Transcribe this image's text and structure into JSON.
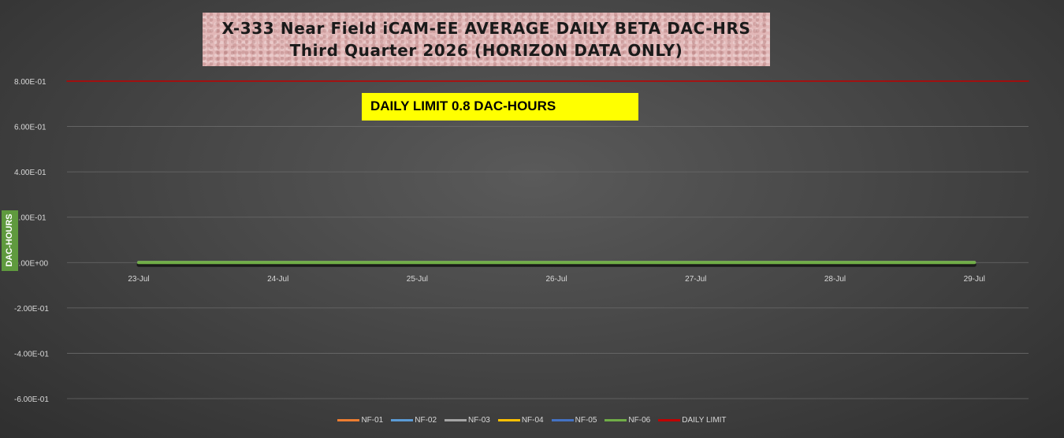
{
  "chart_data": {
    "type": "line",
    "title": "X-333 Near Field iCAM-EE AVERAGE DAILY BETA DAC-HRS",
    "subtitle": "Third Quarter 2026 (HORIZON DATA ONLY)",
    "ylabel": "DAC-HOURS",
    "xlabel": "",
    "annotation": "DAILY LIMIT 0.8 DAC-HOURS",
    "ylim": [
      -0.6,
      0.8
    ],
    "yticks": [
      {
        "value": 0.8,
        "label": "8.00E-01"
      },
      {
        "value": 0.6,
        "label": "6.00E-01"
      },
      {
        "value": 0.4,
        "label": "4.00E-01"
      },
      {
        "value": 0.2,
        "label": "2.00E-01"
      },
      {
        "value": 0.0,
        "label": "0.00E+00"
      },
      {
        "value": -0.2,
        "label": "-2.00E-01"
      },
      {
        "value": -0.4,
        "label": "-4.00E-01"
      },
      {
        "value": -0.6,
        "label": "-6.00E-01"
      }
    ],
    "categories": [
      "23-Jul",
      "24-Jul",
      "25-Jul",
      "26-Jul",
      "27-Jul",
      "28-Jul",
      "29-Jul"
    ],
    "grid": true,
    "legend_position": "bottom",
    "series": [
      {
        "name": "NF-01",
        "color": "#ed7d31",
        "values": [
          0,
          0,
          0,
          0,
          0,
          0,
          0
        ]
      },
      {
        "name": "NF-02",
        "color": "#5b9bd5",
        "values": [
          0,
          0,
          0,
          0,
          0,
          0,
          0
        ]
      },
      {
        "name": "NF-03",
        "color": "#a5a5a5",
        "values": [
          0,
          0,
          0,
          0,
          0,
          0,
          0
        ]
      },
      {
        "name": "NF-04",
        "color": "#ffc000",
        "values": [
          0,
          0,
          0,
          0,
          0,
          0,
          0
        ]
      },
      {
        "name": "NF-05",
        "color": "#4472c4",
        "values": [
          0,
          0,
          0,
          0,
          0,
          0,
          0
        ]
      },
      {
        "name": "NF-06",
        "color": "#70ad47",
        "values": [
          0,
          0,
          0,
          0,
          0,
          0,
          0
        ]
      },
      {
        "name": "DAILY LIMIT",
        "color": "#c00000",
        "values": [
          0.8,
          0.8,
          0.8,
          0.8,
          0.8,
          0.8,
          0.8
        ]
      }
    ]
  }
}
